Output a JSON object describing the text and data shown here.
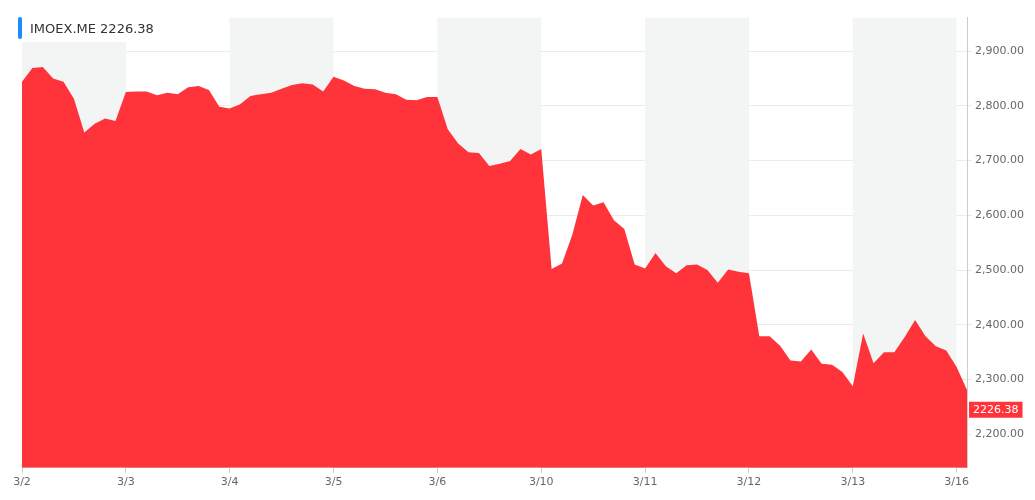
{
  "chart_data": {
    "type": "area",
    "title": "IMOEX.ME  2226.38",
    "categories": [
      "3/2",
      null,
      null,
      null,
      null,
      null,
      null,
      null,
      null,
      null,
      "3/3",
      null,
      null,
      null,
      null,
      null,
      null,
      null,
      null,
      null,
      "3/4",
      null,
      null,
      null,
      null,
      null,
      null,
      null,
      null,
      null,
      "3/5",
      null,
      null,
      null,
      null,
      null,
      null,
      null,
      null,
      null,
      "3/6",
      null,
      null,
      null,
      null,
      null,
      null,
      null,
      null,
      null,
      "3/10",
      null,
      null,
      null,
      null,
      null,
      null,
      null,
      null,
      null,
      "3/11",
      null,
      null,
      null,
      null,
      null,
      null,
      null,
      null,
      null,
      "3/12",
      null,
      null,
      null,
      null,
      null,
      null,
      null,
      null,
      null,
      "3/13",
      null,
      null,
      null,
      null,
      null,
      null,
      null,
      null,
      null,
      "3/16",
      null
    ],
    "series": [
      {
        "color": "#ff333a",
        "values": [
          2844,
          2869,
          2871,
          2850,
          2844,
          2813,
          2751,
          2767,
          2777,
          2772,
          2825,
          2826,
          2826,
          2819,
          2824,
          2821,
          2834,
          2836,
          2829,
          2798,
          2795,
          2803,
          2818,
          2821,
          2824,
          2831,
          2838,
          2841,
          2839,
          2826,
          2853,
          2846,
          2836,
          2831,
          2830,
          2824,
          2821,
          2811,
          2810,
          2816,
          2816,
          2757,
          2731,
          2715,
          2714,
          2690,
          2694,
          2699,
          2721,
          2711,
          2721,
          2502,
          2512,
          2565,
          2637,
          2618,
          2624,
          2591,
          2575,
          2510,
          2503,
          2531,
          2507,
          2494,
          2509,
          2510,
          2500,
          2477,
          2501,
          2497,
          2494,
          2379,
          2379,
          2362,
          2335,
          2333,
          2355,
          2329,
          2327,
          2314,
          2288,
          2384,
          2330,
          2350,
          2350,
          2378,
          2409,
          2379,
          2361,
          2353,
          2323,
          2281
        ]
      }
    ],
    "ylim": [
      2139,
      2961
    ],
    "yticks": [
      {
        "value": 2200,
        "label": "2,200.00"
      },
      {
        "value": 2300,
        "label": "2,300.00"
      },
      {
        "value": 2400,
        "label": "2,400.00"
      },
      {
        "value": 2500,
        "label": "2,500.00"
      },
      {
        "value": 2600,
        "label": "2,600.00"
      },
      {
        "value": 2700,
        "label": "2,700.00"
      },
      {
        "value": 2800,
        "label": "2,800.00"
      },
      {
        "value": 2900,
        "label": "2,900.00"
      }
    ],
    "bands": [
      {
        "axis": "x",
        "from": "3/2",
        "to": "3/3",
        "color": "#f3f5f5"
      },
      {
        "axis": "x",
        "from": "3/4",
        "to": "3/5",
        "color": "#f3f5f5"
      },
      {
        "axis": "x",
        "from": "3/6",
        "to": "3/10",
        "color": "#f3f5f5"
      },
      {
        "axis": "x",
        "from": "3/11",
        "to": "3/12",
        "color": "#f3f5f5"
      },
      {
        "axis": "x",
        "from": "3/13",
        "to": "3/16",
        "color": "#f3f5f5"
      }
    ],
    "annotations": [
      "2226.38"
    ],
    "grid": "y",
    "legend": false,
    "marker": "none"
  }
}
